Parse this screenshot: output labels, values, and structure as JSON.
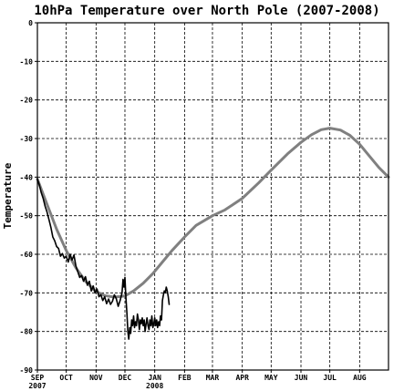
{
  "chart_data": {
    "type": "line",
    "title": "10hPa Temperature over North Pole (2007-2008)",
    "ylabel": "Temperature",
    "ylim": [
      -90,
      0
    ],
    "yticks": [
      0,
      -10,
      -20,
      -30,
      -40,
      -50,
      -60,
      -70,
      -80,
      -90
    ],
    "xlim": [
      0,
      365
    ],
    "month_ticks": [
      {
        "label": "SEP",
        "day": 0,
        "year": "2007"
      },
      {
        "label": "OCT",
        "day": 30,
        "year": ""
      },
      {
        "label": "NOV",
        "day": 61,
        "year": ""
      },
      {
        "label": "DEC",
        "day": 91,
        "year": ""
      },
      {
        "label": "JAN",
        "day": 122,
        "year": "2008"
      },
      {
        "label": "FEB",
        "day": 153,
        "year": ""
      },
      {
        "label": "MAR",
        "day": 182,
        "year": ""
      },
      {
        "label": "APR",
        "day": 213,
        "year": ""
      },
      {
        "label": "MAY",
        "day": 243,
        "year": ""
      },
      {
        "label": "JUN",
        "day": 274,
        "year": ""
      },
      {
        "label": "JUL",
        "day": 304,
        "year": ""
      },
      {
        "label": "AUG",
        "day": 335,
        "year": ""
      }
    ],
    "grid": true,
    "series": [
      {
        "color": "#808080",
        "points": [
          [
            0,
            -40.5
          ],
          [
            10,
            -47
          ],
          [
            20,
            -53.5
          ],
          [
            30,
            -59
          ],
          [
            40,
            -63.5
          ],
          [
            50,
            -67
          ],
          [
            60,
            -69.5
          ],
          [
            70,
            -70.7
          ],
          [
            80,
            -71.1
          ],
          [
            91,
            -70.8
          ],
          [
            100,
            -69.5
          ],
          [
            110,
            -67.5
          ],
          [
            120,
            -65
          ],
          [
            130,
            -62
          ],
          [
            140,
            -59
          ],
          [
            153,
            -55.5
          ],
          [
            165,
            -52.5
          ],
          [
            182,
            -50
          ],
          [
            195,
            -48.5
          ],
          [
            213,
            -45.5
          ],
          [
            230,
            -41.5
          ],
          [
            243,
            -38.2
          ],
          [
            260,
            -34
          ],
          [
            274,
            -31
          ],
          [
            285,
            -29
          ],
          [
            295,
            -27.7
          ],
          [
            304,
            -27.3
          ],
          [
            315,
            -27.8
          ],
          [
            325,
            -29.2
          ],
          [
            335,
            -31.5
          ],
          [
            345,
            -34.5
          ],
          [
            355,
            -37.5
          ],
          [
            365,
            -40
          ]
        ]
      },
      {
        "color": "#000000",
        "points": [
          [
            0,
            -40.5
          ],
          [
            2,
            -42
          ],
          [
            4,
            -44
          ],
          [
            6,
            -45.5
          ],
          [
            8,
            -47.5
          ],
          [
            10,
            -49
          ],
          [
            12,
            -51
          ],
          [
            14,
            -53
          ],
          [
            16,
            -55.5
          ],
          [
            18,
            -56.5
          ],
          [
            20,
            -58
          ],
          [
            22,
            -58.5
          ],
          [
            24,
            -60.5
          ],
          [
            26,
            -59.8
          ],
          [
            28,
            -61
          ],
          [
            30,
            -60.5
          ],
          [
            32,
            -62
          ],
          [
            34,
            -60
          ],
          [
            36,
            -61.5
          ],
          [
            38,
            -60.2
          ],
          [
            40,
            -63
          ],
          [
            42,
            -64.5
          ],
          [
            44,
            -66
          ],
          [
            46,
            -65.5
          ],
          [
            48,
            -67
          ],
          [
            50,
            -65.8
          ],
          [
            52,
            -68
          ],
          [
            54,
            -67
          ],
          [
            56,
            -69.5
          ],
          [
            58,
            -68.2
          ],
          [
            60,
            -70
          ],
          [
            62,
            -69
          ],
          [
            64,
            -71
          ],
          [
            66,
            -70.5
          ],
          [
            68,
            -72
          ],
          [
            70,
            -71
          ],
          [
            72,
            -72.8
          ],
          [
            74,
            -71.6
          ],
          [
            76,
            -73
          ],
          [
            78,
            -72.2
          ],
          [
            80,
            -70.5
          ],
          [
            82,
            -71.5
          ],
          [
            84,
            -73.5
          ],
          [
            86,
            -72
          ],
          [
            88,
            -70
          ],
          [
            89,
            -66.5
          ],
          [
            90,
            -68.5
          ],
          [
            91,
            -66
          ],
          [
            92,
            -71
          ],
          [
            93,
            -75
          ],
          [
            94,
            -80
          ],
          [
            95,
            -82
          ],
          [
            96,
            -79
          ],
          [
            97,
            -80.5
          ],
          [
            98,
            -77
          ],
          [
            99,
            -78.5
          ],
          [
            100,
            -76
          ],
          [
            101,
            -79
          ],
          [
            102,
            -77.5
          ],
          [
            103,
            -78.5
          ],
          [
            104,
            -75.5
          ],
          [
            105,
            -77
          ],
          [
            106,
            -79.5
          ],
          [
            107,
            -77
          ],
          [
            108,
            -78
          ],
          [
            109,
            -76.5
          ],
          [
            110,
            -78.5
          ],
          [
            111,
            -77
          ],
          [
            112,
            -80
          ],
          [
            113,
            -78
          ],
          [
            114,
            -76.5
          ],
          [
            115,
            -78.5
          ],
          [
            116,
            -79.5
          ],
          [
            117,
            -77
          ],
          [
            118,
            -78.5
          ],
          [
            119,
            -76
          ],
          [
            120,
            -79
          ],
          [
            121,
            -78
          ],
          [
            122,
            -76.5
          ],
          [
            123,
            -78.5
          ],
          [
            124,
            -77
          ],
          [
            125,
            -79
          ],
          [
            126,
            -77.5
          ],
          [
            127,
            -78.5
          ],
          [
            128,
            -76
          ],
          [
            129,
            -77
          ],
          [
            130,
            -72
          ],
          [
            131,
            -70.5
          ],
          [
            132,
            -69.5
          ],
          [
            133,
            -70
          ],
          [
            134,
            -68.5
          ],
          [
            135,
            -69.5
          ],
          [
            136,
            -71
          ],
          [
            137,
            -73
          ]
        ]
      }
    ]
  }
}
